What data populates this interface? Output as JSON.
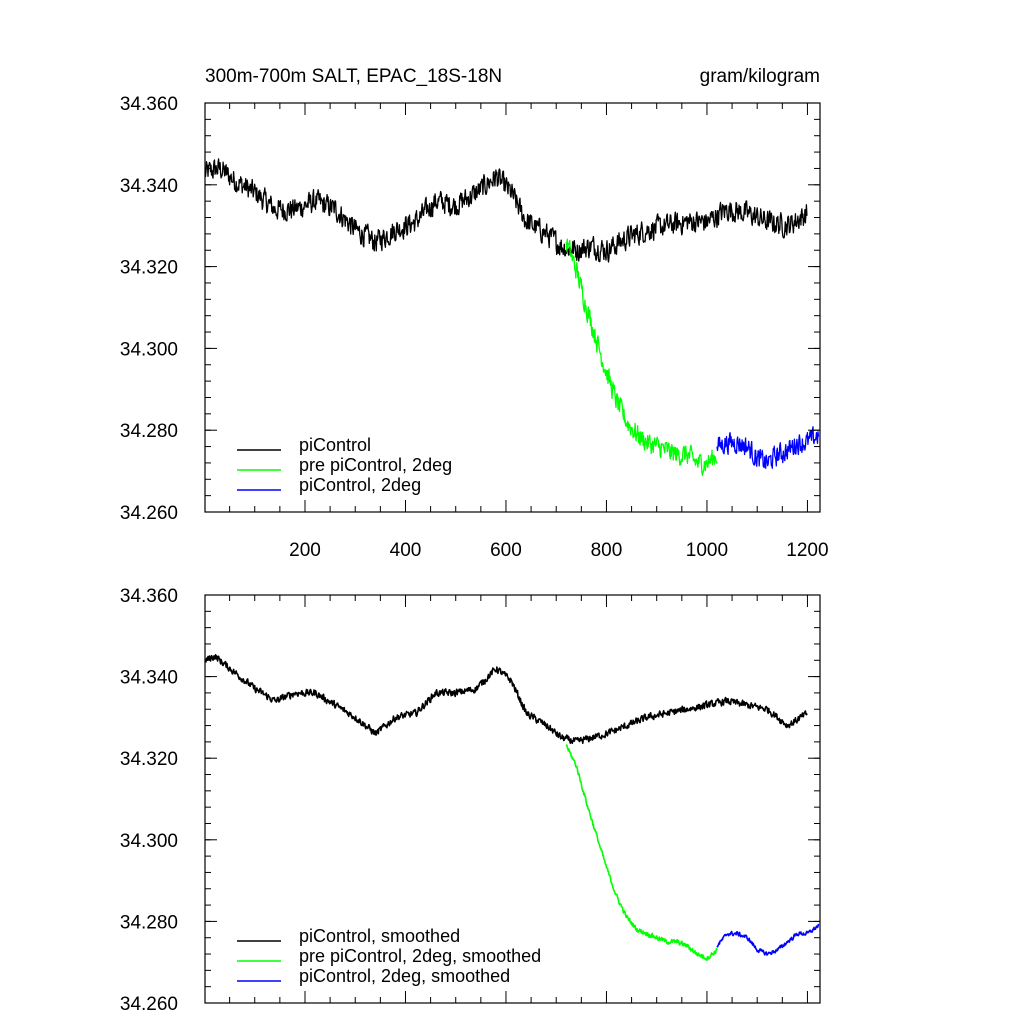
{
  "chart_data": [
    {
      "type": "line",
      "panel": "top",
      "title": "300m-700m SALT, EPAC_18S-18N",
      "units": "gram/kilogram",
      "xlim": [
        1,
        1225
      ],
      "ylim": [
        34.26,
        34.36
      ],
      "x_tick_labels": [
        "200",
        "400",
        "600",
        "800",
        "1000",
        "1200"
      ],
      "x_tick_values": [
        200,
        400,
        600,
        800,
        1000,
        1200
      ],
      "y_tick_labels": [
        "34.260",
        "34.280",
        "34.300",
        "34.320",
        "34.340",
        "34.360"
      ],
      "y_tick_values": [
        34.26,
        34.28,
        34.3,
        34.32,
        34.34,
        34.36
      ],
      "legend_position": "bottom-left",
      "series": [
        {
          "name": "piControl",
          "color": "#000000",
          "noise": 0.0038,
          "x_start": 1,
          "x_end": 1200,
          "x": [
            1,
            30,
            60,
            100,
            140,
            180,
            220,
            260,
            300,
            340,
            380,
            420,
            460,
            500,
            540,
            580,
            610,
            640,
            680,
            710,
            740,
            770,
            800,
            840,
            880,
            920,
            960,
            1000,
            1040,
            1080,
            1120,
            1160,
            1200
          ],
          "values": [
            34.343,
            34.344,
            34.341,
            34.338,
            34.334,
            34.334,
            34.336,
            34.334,
            34.329,
            34.326,
            34.329,
            34.331,
            34.336,
            34.335,
            34.338,
            34.342,
            34.338,
            34.331,
            34.328,
            34.325,
            34.324,
            34.325,
            34.324,
            34.327,
            34.329,
            34.33,
            34.331,
            34.331,
            34.334,
            34.333,
            34.331,
            34.33,
            34.333
          ]
        },
        {
          "name": "pre piControl, 2deg",
          "color": "#00ff00",
          "noise": 0.0035,
          "x_start": 720,
          "x_end": 1020,
          "x": [
            720,
            740,
            760,
            780,
            800,
            820,
            840,
            860,
            880,
            900,
            920,
            940,
            960,
            980,
            1000,
            1020
          ],
          "values": [
            34.326,
            34.319,
            34.31,
            34.302,
            34.294,
            34.287,
            34.282,
            34.279,
            34.277,
            34.276,
            34.275,
            34.274,
            34.274,
            34.272,
            34.272,
            34.274
          ]
        },
        {
          "name": "piControl, 2deg",
          "color": "#0000ff",
          "noise": 0.0035,
          "x_start": 1020,
          "x_end": 1222,
          "x": [
            1020,
            1040,
            1060,
            1080,
            1100,
            1120,
            1140,
            1160,
            1180,
            1200,
            1222
          ],
          "values": [
            34.276,
            34.277,
            34.277,
            34.276,
            34.273,
            34.272,
            34.274,
            34.275,
            34.277,
            34.277,
            34.279
          ]
        }
      ]
    },
    {
      "type": "line",
      "panel": "bottom",
      "title": "",
      "xlim": [
        1,
        1225
      ],
      "ylim": [
        34.26,
        34.36
      ],
      "x_tick_values": [
        200,
        400,
        600,
        800,
        1000,
        1200
      ],
      "y_tick_labels": [
        "34.260",
        "34.280",
        "34.300",
        "34.320",
        "34.340",
        "34.360"
      ],
      "y_tick_values": [
        34.26,
        34.28,
        34.3,
        34.32,
        34.34,
        34.36
      ],
      "legend_position": "bottom-left",
      "series": [
        {
          "name": "piControl, smoothed",
          "color": "#000000",
          "noise": 0.0012,
          "x_start": 1,
          "x_end": 1200,
          "x": [
            1,
            20,
            60,
            100,
            140,
            180,
            220,
            260,
            300,
            340,
            380,
            420,
            460,
            500,
            540,
            580,
            610,
            640,
            680,
            710,
            740,
            770,
            800,
            840,
            880,
            920,
            960,
            1000,
            1040,
            1080,
            1120,
            1160,
            1200
          ],
          "values": [
            34.344,
            34.345,
            34.341,
            34.337,
            34.334,
            34.336,
            34.336,
            34.333,
            34.33,
            34.326,
            34.33,
            34.331,
            34.336,
            34.336,
            34.337,
            34.342,
            34.339,
            34.331,
            34.328,
            34.325,
            34.324,
            34.325,
            34.326,
            34.328,
            34.33,
            34.331,
            34.332,
            34.333,
            34.334,
            34.333,
            34.332,
            34.328,
            34.331
          ]
        },
        {
          "name": "pre piControl, 2deg, smoothed",
          "color": "#00ff00",
          "noise": 0.0008,
          "x_start": 720,
          "x_end": 1020,
          "x": [
            720,
            740,
            760,
            780,
            800,
            820,
            840,
            860,
            880,
            900,
            920,
            940,
            960,
            980,
            1000,
            1020
          ],
          "values": [
            34.323,
            34.318,
            34.309,
            34.301,
            34.293,
            34.286,
            34.281,
            34.278,
            34.277,
            34.276,
            34.275,
            34.275,
            34.274,
            34.272,
            34.271,
            34.273
          ]
        },
        {
          "name": "piControl, 2deg, smoothed",
          "color": "#0000ff",
          "noise": 0.0007,
          "x_start": 1020,
          "x_end": 1222,
          "x": [
            1020,
            1040,
            1060,
            1080,
            1100,
            1120,
            1140,
            1160,
            1180,
            1200,
            1222
          ],
          "values": [
            34.274,
            34.277,
            34.277,
            34.276,
            34.273,
            34.272,
            34.273,
            34.275,
            34.277,
            34.277,
            34.279
          ]
        }
      ]
    }
  ]
}
